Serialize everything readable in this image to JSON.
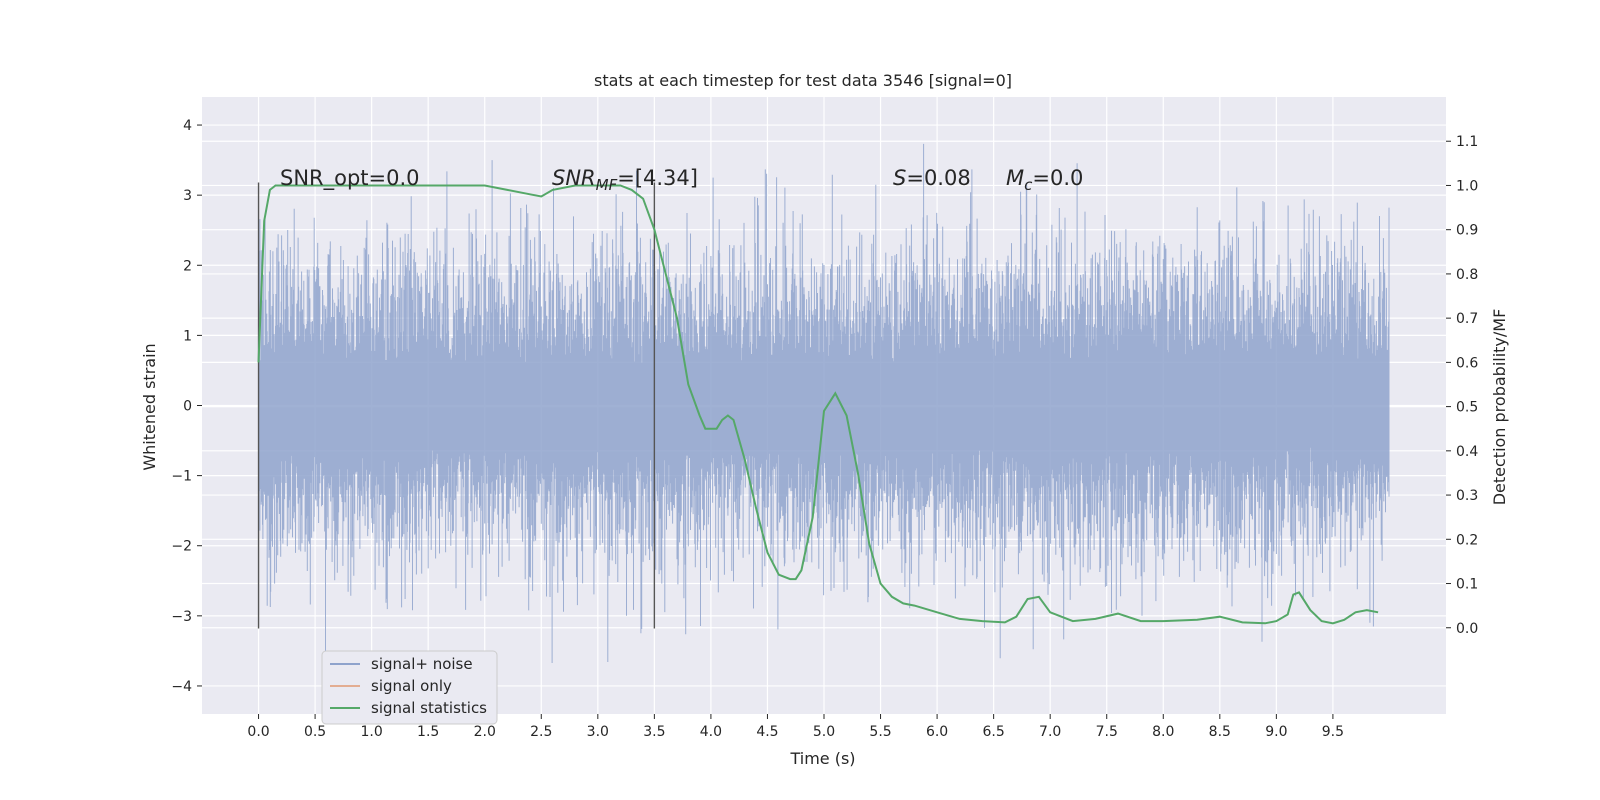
{
  "chart_data": {
    "type": "line",
    "title": "stats at each timestep for test data 3546 [signal=0]",
    "xlabel": "Time (s)",
    "ylabel": "Whitened strain",
    "y2label": "Detection probability/MF",
    "xlim": [
      -0.5,
      10.5
    ],
    "ylim": [
      -4.4,
      4.4
    ],
    "y2lim": [
      -0.195,
      1.2
    ],
    "grid": true,
    "x_ticks": [
      "0.0",
      "0.5",
      "1.0",
      "1.5",
      "2.0",
      "2.5",
      "3.0",
      "3.5",
      "4.0",
      "4.5",
      "5.0",
      "5.5",
      "6.0",
      "6.5",
      "7.0",
      "7.5",
      "8.0",
      "8.5",
      "9.0",
      "9.5"
    ],
    "y_ticks": [
      "4",
      "3",
      "2",
      "1",
      "0",
      "−1",
      "−2",
      "−3",
      "−4"
    ],
    "y2_ticks": [
      "1.1",
      "1.0",
      "0.9",
      "0.8",
      "0.7",
      "0.6",
      "0.5",
      "0.4",
      "0.3",
      "0.2",
      "0.1",
      "0.0"
    ],
    "annotations": {
      "snr_opt": "SNR_opt=0.0",
      "snr_mf_sym": "SNR",
      "snr_mf_sub": "MF",
      "snr_mf_val": "=[4.34]",
      "s_sym": "S",
      "s_val": "=0.08",
      "mc_sym": "M",
      "mc_sub": "c",
      "mc_val": "=0.0"
    },
    "vlines_x": [
      0.0,
      3.5
    ],
    "legend": {
      "placement": "lower-left",
      "entries": [
        "signal+ noise",
        "signal only",
        "signal statistics"
      ]
    },
    "colors": {
      "noise": "#8fa3cc",
      "signal_only": "#dd8452",
      "statistics": "#55a868",
      "background": "#eaeaf2"
    },
    "series": [
      {
        "name": "signal statistics",
        "axis": "right",
        "x": [
          0.0,
          0.05,
          0.1,
          0.15,
          0.2,
          0.3,
          0.5,
          0.8,
          1.0,
          1.5,
          2.0,
          2.2,
          2.4,
          2.5,
          2.6,
          2.8,
          3.0,
          3.2,
          3.3,
          3.4,
          3.5,
          3.6,
          3.7,
          3.8,
          3.9,
          3.95,
          4.05,
          4.1,
          4.15,
          4.2,
          4.3,
          4.4,
          4.5,
          4.6,
          4.7,
          4.75,
          4.8,
          4.9,
          5.0,
          5.1,
          5.2,
          5.3,
          5.4,
          5.5,
          5.6,
          5.7,
          5.8,
          6.0,
          6.2,
          6.4,
          6.6,
          6.7,
          6.8,
          6.9,
          7.0,
          7.2,
          7.4,
          7.6,
          7.8,
          8.0,
          8.3,
          8.5,
          8.7,
          8.9,
          9.0,
          9.1,
          9.15,
          9.2,
          9.3,
          9.4,
          9.5,
          9.6,
          9.7,
          9.8,
          9.9
        ],
        "values": [
          0.6,
          0.92,
          0.99,
          1.0,
          1.0,
          1.0,
          1.0,
          1.0,
          1.0,
          1.0,
          1.0,
          0.99,
          0.98,
          0.975,
          0.99,
          1.0,
          1.0,
          1.0,
          0.99,
          0.97,
          0.9,
          0.8,
          0.7,
          0.55,
          0.48,
          0.45,
          0.45,
          0.47,
          0.48,
          0.47,
          0.38,
          0.27,
          0.17,
          0.12,
          0.11,
          0.11,
          0.13,
          0.25,
          0.49,
          0.53,
          0.48,
          0.35,
          0.19,
          0.1,
          0.07,
          0.055,
          0.05,
          0.035,
          0.02,
          0.015,
          0.012,
          0.025,
          0.065,
          0.07,
          0.035,
          0.015,
          0.02,
          0.032,
          0.015,
          0.015,
          0.018,
          0.025,
          0.012,
          0.01,
          0.015,
          0.03,
          0.075,
          0.08,
          0.04,
          0.015,
          0.01,
          0.018,
          0.035,
          0.04,
          0.035
        ]
      }
    ]
  }
}
